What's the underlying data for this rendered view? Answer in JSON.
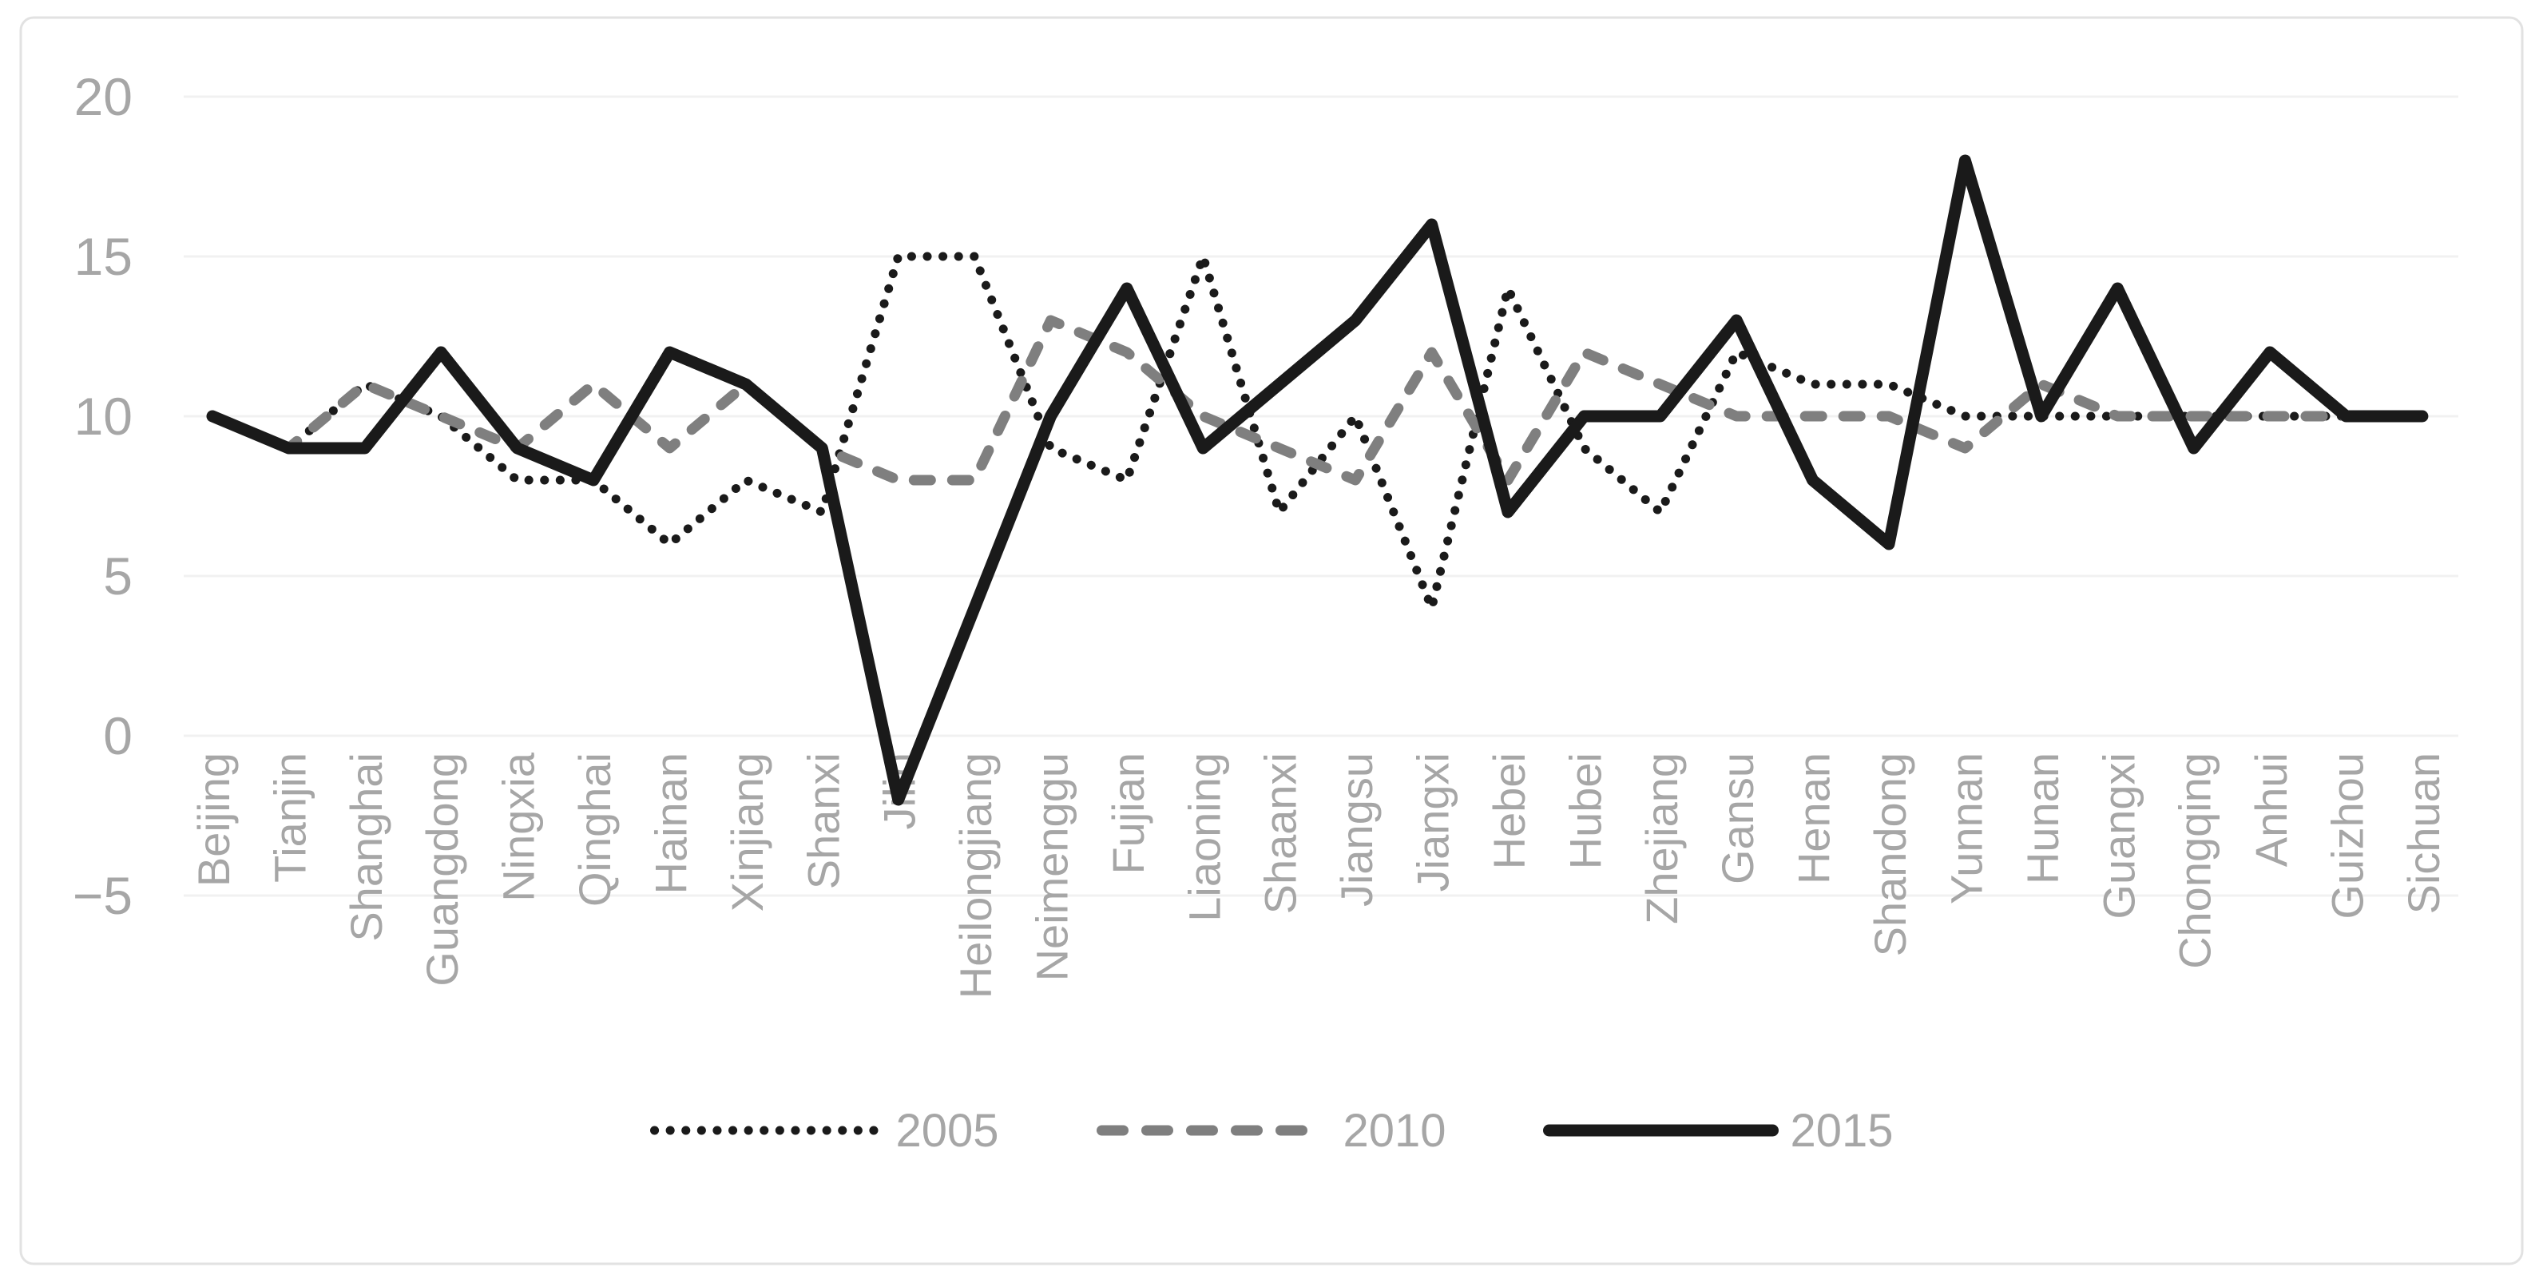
{
  "frame": {
    "background_color": "#ffffff",
    "border_color": "#e2e2e2",
    "gridline_color": "#f1f1f1",
    "axis_label_color": "#a6a6a6",
    "legend_text_color": "#a6a6a6"
  },
  "chart_data": {
    "type": "line",
    "title": "",
    "xlabel": "",
    "ylabel": "",
    "ylim": [
      -5,
      20
    ],
    "yticks": [
      20,
      15,
      10,
      5,
      0,
      -5
    ],
    "ytick_labels": [
      "20",
      "15",
      "10",
      "5",
      "0",
      "−5"
    ],
    "grid": "horizontal-only",
    "legend_position": "bottom",
    "categories": [
      "Beijing",
      "Tianjin",
      "Shanghai",
      "Guangdong",
      "Ningxia",
      "Qinghai",
      "Hainan",
      "Xinjiang",
      "Shanxi",
      "Jilin",
      "Heilongjiang",
      "Neimenggu",
      "Fujian",
      "Liaoning",
      "Shaanxi",
      "Jiangsu",
      "Jiangxi",
      "Hebei",
      "Hubei",
      "Zhejiang",
      "Gansu",
      "Henan",
      "Shandong",
      "Yunnan",
      "Hunan",
      "Guangxi",
      "Chongqing",
      "Anhui",
      "Guizhou",
      "Sichuan"
    ],
    "series": [
      {
        "name": "2005",
        "line_style": "dotted",
        "color": "#1a1a1a",
        "values": [
          10,
          9,
          11,
          10,
          8,
          8,
          6,
          8,
          7,
          15,
          15,
          9,
          8,
          15,
          7,
          10,
          4,
          14,
          9,
          7,
          12,
          11,
          11,
          10,
          10,
          10,
          10,
          10,
          10,
          10
        ]
      },
      {
        "name": "2010",
        "line_style": "dashed",
        "color": "#7f7f7f",
        "values": [
          10,
          9,
          11,
          10,
          9,
          11,
          9,
          11,
          9,
          8,
          8,
          13,
          12,
          10,
          9,
          8,
          12,
          8,
          12,
          11,
          10,
          10,
          10,
          9,
          11,
          10,
          10,
          10,
          10,
          10
        ]
      },
      {
        "name": "2015",
        "line_style": "solid",
        "color": "#1a1a1a",
        "values": [
          10,
          9,
          9,
          12,
          9,
          8,
          12,
          11,
          9,
          -2,
          4,
          10,
          14,
          9,
          11,
          13,
          16,
          7,
          10,
          10,
          13,
          8,
          6,
          18,
          10,
          14,
          9,
          12,
          10,
          10
        ]
      }
    ],
    "legend": {
      "items": [
        "2005",
        "2010",
        "2015"
      ]
    }
  }
}
